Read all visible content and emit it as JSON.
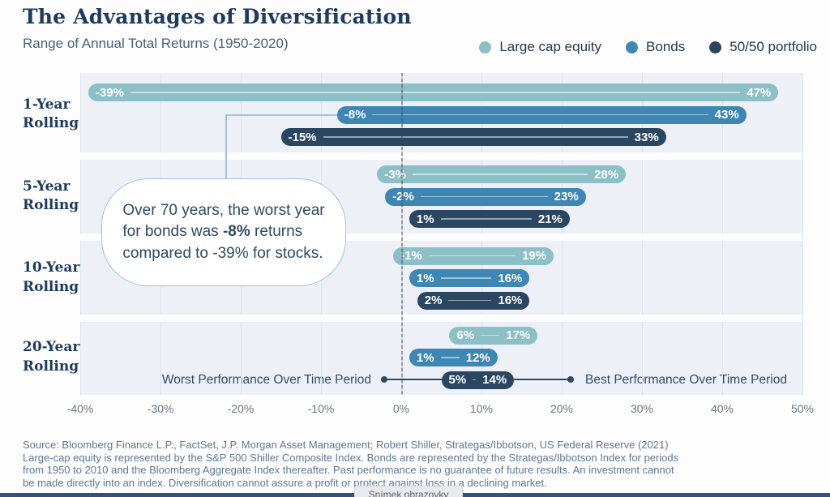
{
  "chart_data": {
    "type": "bar",
    "subtype": "floating-range-pills",
    "title": "The Advantages of Diversification",
    "subtitle": "Range of Annual Total Returns (1950-2020)",
    "categories": [
      "1-Year Rolling",
      "5-Year Rolling",
      "10-Year Rolling",
      "20-Year Rolling"
    ],
    "series": [
      {
        "name": "Large cap equity",
        "color": "#8cc0c6",
        "ranges": [
          [
            -39,
            47
          ],
          [
            -3,
            28
          ],
          [
            -1,
            19
          ],
          [
            6,
            17
          ]
        ]
      },
      {
        "name": "Bonds",
        "color": "#3e87b4",
        "ranges": [
          [
            -8,
            43
          ],
          [
            -2,
            23
          ],
          [
            1,
            16
          ],
          [
            1,
            12
          ]
        ]
      },
      {
        "name": "50/50 portfolio",
        "color": "#2a4660",
        "ranges": [
          [
            -15,
            33
          ],
          [
            1,
            21
          ],
          [
            2,
            16
          ],
          [
            5,
            14
          ]
        ]
      }
    ],
    "value_suffix": "%",
    "x_axis": {
      "min": -40,
      "max": 50,
      "tick_step": 10,
      "tick_labels": [
        "-40%",
        "-30%",
        "-20%",
        "-10%",
        "0%",
        "10%",
        "20%",
        "30%",
        "40%",
        "50%"
      ]
    },
    "grid": true,
    "legend_position": "top-right",
    "axis_annotations": {
      "worst": "Worst Performance Over Time Period",
      "best": "Best Performance Over Time Period"
    }
  },
  "callout": {
    "line1": "Over 70 years, the worst year",
    "line2_pre": "for bonds was ",
    "line2_bold": "-8%",
    "line2_post": " returns",
    "line3": "compared to -39% for stocks."
  },
  "footer": {
    "lines": [
      "Source: Bloomberg Finance L.P., FactSet, J.P. Morgan Asset Management; Robert Shiller, Strategas/Ibbotson, US Federal Reserve (2021)",
      "Large-cap equity is represented by the S&P 500 Shiller Composite Index. Bonds are represented by the Strategas/Ibbotson Index for periods",
      "from 1950 to 2010 and the Bloomberg Aggregate Index thereafter. Past performance is no guarantee of future results. An investment cannot",
      "be made directly into an index. Diversification cannot assure a profit or protect against loss in a declining market."
    ]
  },
  "overlay": {
    "screenshot_button": "Snímek obrazovky"
  }
}
